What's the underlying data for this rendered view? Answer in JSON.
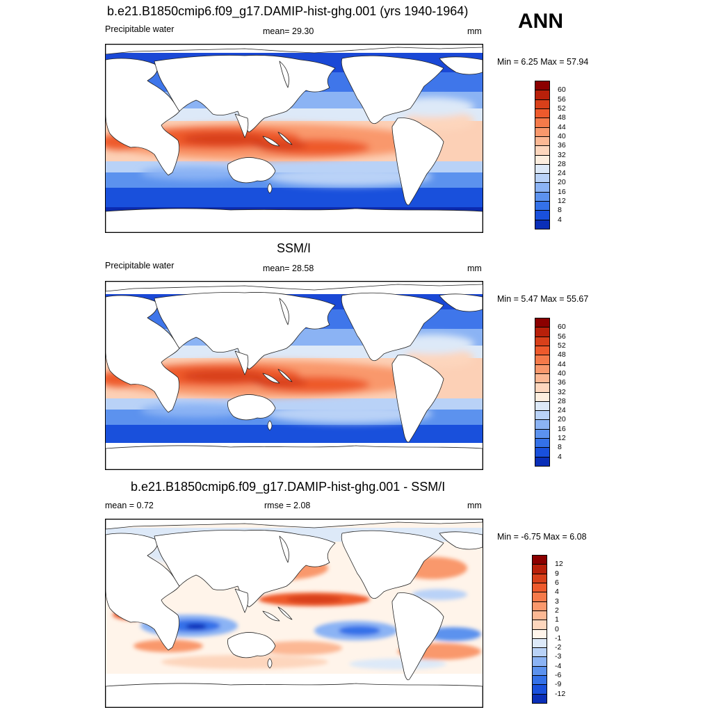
{
  "season": "ANN",
  "panels": [
    {
      "id": "model",
      "title": "b.e21.B1850cmip6.f09_g17.DAMIP-hist-ghg.001 (yrs 1940-1964)",
      "left_label": "Precipitable water",
      "center_label": "mean=  29.30",
      "units": "mm",
      "minmax": "Min =   6.25 Max =  57.94"
    },
    {
      "id": "obs",
      "title": "SSM/I",
      "left_label": "Precipitable water",
      "center_label": "mean=  28.58",
      "units": "mm",
      "minmax": "Min =   5.47 Max =  55.67"
    },
    {
      "id": "diff",
      "title": "b.e21.B1850cmip6.f09_g17.DAMIP-hist-ghg.001 - SSM/I",
      "left_label": "mean =   0.72",
      "center_label": "rmse =   2.08",
      "units": "mm",
      "minmax": "Min =  -6.75 Max =   6.08"
    }
  ],
  "colorbar_abs": {
    "labels": [
      "60",
      "56",
      "52",
      "48",
      "44",
      "40",
      "36",
      "32",
      "28",
      "24",
      "20",
      "16",
      "12",
      "8",
      "4"
    ],
    "colors": [
      "#8b0000",
      "#b8200a",
      "#d8401a",
      "#ee5a2c",
      "#f57a4a",
      "#f9986c",
      "#fcb894",
      "#fdd6bd",
      "#fdeedf",
      "#dde9f8",
      "#b9d2f7",
      "#8bb3f4",
      "#5c92ee",
      "#3471e8",
      "#1950dc",
      "#0a2fb8"
    ]
  },
  "colorbar_diff": {
    "labels": [
      "12",
      "9",
      "6",
      "4",
      "3",
      "2",
      "1",
      "0",
      "-1",
      "-2",
      "-3",
      "-4",
      "-6",
      "-9",
      "-12"
    ],
    "colors": [
      "#8b0000",
      "#b8200a",
      "#d8401a",
      "#ee5a2c",
      "#f57a4a",
      "#f9986c",
      "#fcb894",
      "#fdd6bd",
      "#fff4ea",
      "#dde9f8",
      "#b9d2f7",
      "#8bb3f4",
      "#5c92ee",
      "#3471e8",
      "#1950dc",
      "#0a2fb8"
    ]
  },
  "colors": {
    "frame": "#000000",
    "land": "#ffffff",
    "coast": "#222222",
    "warm_core": "#e0471f",
    "warm_mid": "#f7946a",
    "warm_light": "#fcd0b6",
    "cool_light": "#bcd3f6",
    "cool_mid": "#4f83ec",
    "cool_deep": "#1a48d6",
    "cool_darkest": "#0b2ab0"
  }
}
